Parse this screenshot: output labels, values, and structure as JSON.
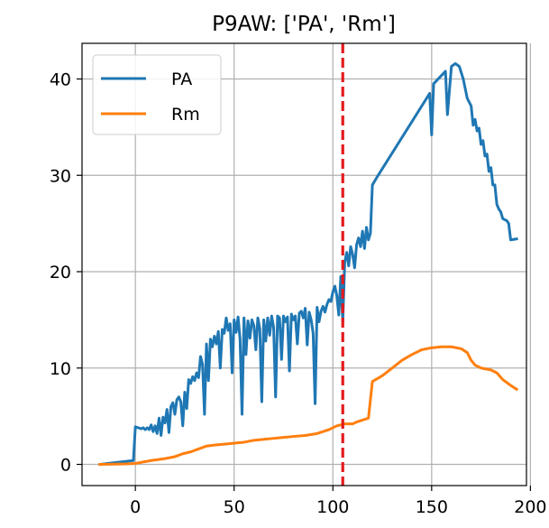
{
  "chart_data": {
    "type": "line",
    "title": "P9AW: ['PA', 'Rm']",
    "xlabel": "",
    "ylabel": "",
    "xlim": [
      -27,
      198
    ],
    "ylim": [
      -2.2,
      43.7
    ],
    "xticks": [
      0,
      50,
      100,
      150,
      200
    ],
    "yticks": [
      0,
      10,
      20,
      30,
      40
    ],
    "grid": true,
    "legend_position": "upper-left",
    "vline": {
      "x": 105,
      "color": "#e41a1c",
      "style": "dashed"
    },
    "series": [
      {
        "name": "PA",
        "color": "#1f77b4",
        "points": [
          [
            -18,
            0
          ],
          [
            -1,
            0.4
          ],
          [
            0,
            3.9
          ],
          [
            3,
            3.7
          ],
          [
            4,
            3.8
          ],
          [
            5,
            3.6
          ],
          [
            6,
            3.8
          ],
          [
            7,
            3.6
          ],
          [
            8,
            4.1
          ],
          [
            9,
            3.4
          ],
          [
            10,
            4.0
          ],
          [
            11,
            3.2
          ],
          [
            12,
            4.8
          ],
          [
            13,
            3.0
          ],
          [
            14,
            4.9
          ],
          [
            15,
            4.3
          ],
          [
            16,
            5.7
          ],
          [
            17,
            3.3
          ],
          [
            18,
            6.0
          ],
          [
            19,
            6.4
          ],
          [
            20,
            5.2
          ],
          [
            21,
            6.7
          ],
          [
            22,
            7.0
          ],
          [
            23,
            6.5
          ],
          [
            24,
            4.0
          ],
          [
            25,
            7.5
          ],
          [
            26,
            5.8
          ],
          [
            27,
            8.8
          ],
          [
            28,
            8.4
          ],
          [
            29,
            9.1
          ],
          [
            30,
            8.7
          ],
          [
            31,
            9.5
          ],
          [
            32,
            9.0
          ],
          [
            33,
            11.2
          ],
          [
            34,
            10.4
          ],
          [
            35,
            5.2
          ],
          [
            36,
            12.5
          ],
          [
            37,
            8.7
          ],
          [
            38,
            13.0
          ],
          [
            39,
            12.2
          ],
          [
            40,
            13.3
          ],
          [
            41,
            12.5
          ],
          [
            42,
            13.8
          ],
          [
            43,
            10.0
          ],
          [
            44,
            14.0
          ],
          [
            45,
            13.6
          ],
          [
            46,
            15.2
          ],
          [
            47,
            13.9
          ],
          [
            48,
            14.6
          ],
          [
            49,
            9.5
          ],
          [
            50,
            15.0
          ],
          [
            51,
            13.7
          ],
          [
            52,
            15.3
          ],
          [
            53,
            13.0
          ],
          [
            54,
            5.2
          ],
          [
            55,
            15.2
          ],
          [
            56,
            11.4
          ],
          [
            57,
            14.9
          ],
          [
            58,
            13.1
          ],
          [
            59,
            15.0
          ],
          [
            60,
            14.4
          ],
          [
            61,
            11.9
          ],
          [
            62,
            15.2
          ],
          [
            63,
            14.1
          ],
          [
            64,
            6.5
          ],
          [
            65,
            15.0
          ],
          [
            66,
            12.8
          ],
          [
            67,
            15.2
          ],
          [
            68,
            13.4
          ],
          [
            69,
            15.4
          ],
          [
            70,
            14.2
          ],
          [
            71,
            7.0
          ],
          [
            72,
            15.4
          ],
          [
            73,
            15.2
          ],
          [
            74,
            10.9
          ],
          [
            75,
            15.4
          ],
          [
            76,
            14.8
          ],
          [
            77,
            15.3
          ],
          [
            78,
            9.7
          ],
          [
            79,
            15.6
          ],
          [
            80,
            15.0
          ],
          [
            81,
            15.4
          ],
          [
            82,
            12.5
          ],
          [
            83,
            15.7
          ],
          [
            84,
            15.9
          ],
          [
            85,
            15.2
          ],
          [
            86,
            16.2
          ],
          [
            87,
            12.4
          ],
          [
            88,
            15.8
          ],
          [
            89,
            15.0
          ],
          [
            90,
            13.6
          ],
          [
            91,
            6.3
          ],
          [
            92,
            16.3
          ],
          [
            93,
            14.8
          ],
          [
            94,
            15.9
          ],
          [
            95,
            16.4
          ],
          [
            96,
            15.8
          ],
          [
            97,
            16.6
          ],
          [
            98,
            17.1
          ],
          [
            99,
            16.9
          ],
          [
            100,
            17.9
          ],
          [
            101,
            18.5
          ],
          [
            102,
            17.5
          ],
          [
            103,
            15.5
          ],
          [
            104,
            19.5
          ],
          [
            105,
            14.8
          ],
          [
            106,
            21.0
          ],
          [
            107,
            22.0
          ],
          [
            108,
            20.6
          ],
          [
            109,
            22.6
          ],
          [
            110,
            21.8
          ],
          [
            111,
            20.4
          ],
          [
            112,
            22.8
          ],
          [
            113,
            23.5
          ],
          [
            114,
            22.6
          ],
          [
            115,
            24.2
          ],
          [
            116,
            22.4
          ],
          [
            117,
            24.6
          ],
          [
            118,
            23.3
          ],
          [
            119,
            24.0
          ],
          [
            120,
            29.0
          ],
          [
            122,
            29.7
          ],
          [
            149,
            38.5
          ],
          [
            150,
            34.2
          ],
          [
            151,
            39.5
          ],
          [
            157,
            40.8
          ],
          [
            158,
            36.3
          ],
          [
            160,
            41.3
          ],
          [
            162,
            41.6
          ],
          [
            164,
            41.3
          ],
          [
            166,
            40.0
          ],
          [
            168,
            38.0
          ],
          [
            170,
            37.2
          ],
          [
            171,
            35.2
          ],
          [
            172,
            35.8
          ],
          [
            173,
            34.6
          ],
          [
            174,
            34.9
          ],
          [
            175,
            33.2
          ],
          [
            176,
            33.6
          ],
          [
            177,
            32.0
          ],
          [
            178,
            32.2
          ],
          [
            179,
            30.4
          ],
          [
            180,
            30.8
          ],
          [
            181,
            29.0
          ],
          [
            182,
            29.0
          ],
          [
            183,
            27.0
          ],
          [
            184,
            26.5
          ],
          [
            185,
            26.2
          ],
          [
            186,
            25.5
          ],
          [
            187,
            25.4
          ],
          [
            188,
            25.3
          ],
          [
            189,
            25.0
          ],
          [
            190,
            23.3
          ],
          [
            193,
            23.4
          ]
        ]
      },
      {
        "name": "Rm",
        "color": "#ff7f0e",
        "points": [
          [
            -18,
            0.0
          ],
          [
            -5,
            0.05
          ],
          [
            0,
            0.1
          ],
          [
            8,
            0.4
          ],
          [
            15,
            0.6
          ],
          [
            20,
            0.8
          ],
          [
            24,
            1.1
          ],
          [
            28,
            1.3
          ],
          [
            32,
            1.6
          ],
          [
            36,
            1.9
          ],
          [
            40,
            2.0
          ],
          [
            45,
            2.1
          ],
          [
            50,
            2.2
          ],
          [
            55,
            2.3
          ],
          [
            60,
            2.5
          ],
          [
            65,
            2.6
          ],
          [
            70,
            2.7
          ],
          [
            75,
            2.8
          ],
          [
            80,
            2.9
          ],
          [
            86,
            3.0
          ],
          [
            92,
            3.2
          ],
          [
            98,
            3.6
          ],
          [
            102,
            4.0
          ],
          [
            106,
            4.2
          ],
          [
            110,
            4.2
          ],
          [
            112,
            4.4
          ],
          [
            118,
            4.8
          ],
          [
            120,
            8.6
          ],
          [
            125,
            9.2
          ],
          [
            130,
            10.0
          ],
          [
            135,
            10.8
          ],
          [
            140,
            11.4
          ],
          [
            145,
            11.9
          ],
          [
            150,
            12.1
          ],
          [
            155,
            12.2
          ],
          [
            160,
            12.2
          ],
          [
            165,
            12.0
          ],
          [
            168,
            11.6
          ],
          [
            170,
            10.8
          ],
          [
            172,
            10.3
          ],
          [
            175,
            10.0
          ],
          [
            180,
            9.8
          ],
          [
            183,
            9.5
          ],
          [
            186,
            8.8
          ],
          [
            190,
            8.2
          ],
          [
            193,
            7.8
          ]
        ]
      }
    ]
  }
}
